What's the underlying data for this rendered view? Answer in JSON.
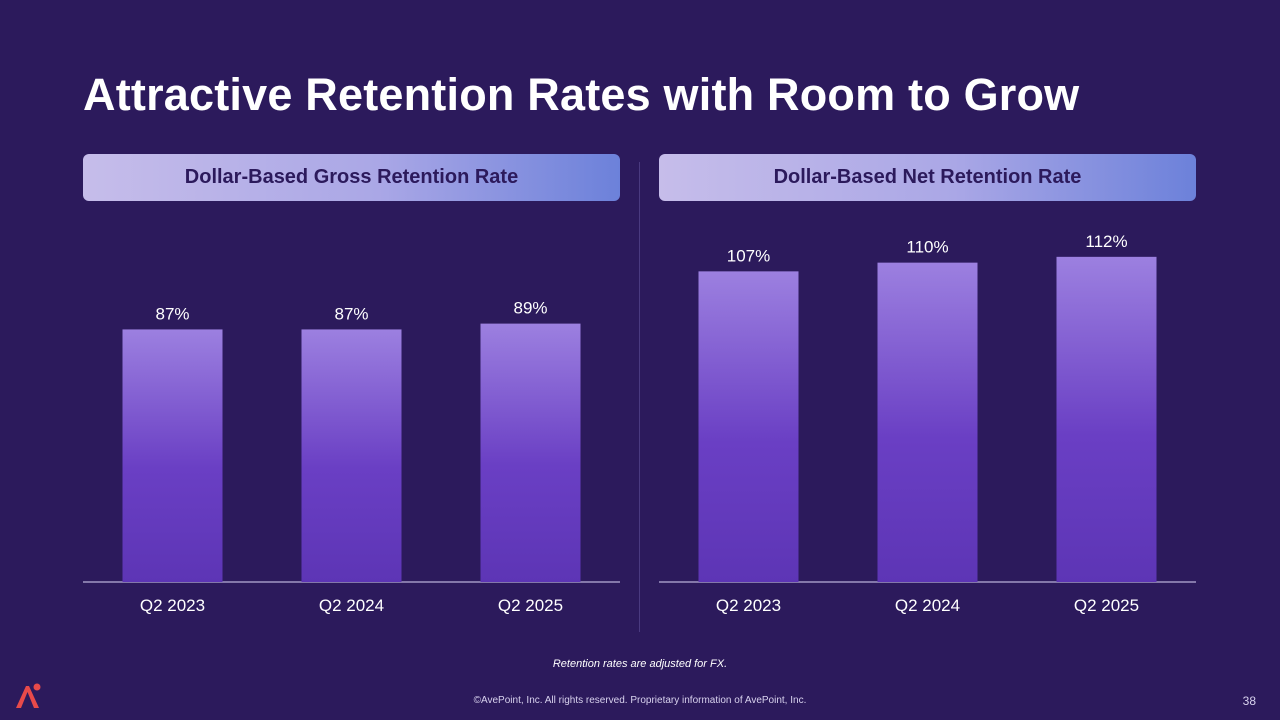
{
  "slide": {
    "title": "Attractive Retention Rates with Room to Grow",
    "footnote": "Retention rates are adjusted for FX.",
    "footer": "©AvePoint, Inc. All rights reserved. Proprietary information of AvePoint, Inc.",
    "page_number": "38"
  },
  "colors": {
    "background": "#2c1a5c",
    "bar_top": "#9c80e0",
    "bar_bottom": "#5d35b5",
    "header_gradient_start": "#c6bdea",
    "header_gradient_end": "#6c81da",
    "logo": "#e84a4a"
  },
  "logo_icon": "avepoint-logo-icon",
  "chart_data": [
    {
      "type": "bar",
      "title": "Dollar-Based Gross Retention Rate",
      "categories": [
        "Q2 2023",
        "Q2 2024",
        "Q2 2025"
      ],
      "values": [
        87,
        87,
        89
      ],
      "data_labels": [
        "87%",
        "87%",
        "89%"
      ],
      "ylim": [
        0,
        124
      ],
      "grid": false,
      "legend": "none"
    },
    {
      "type": "bar",
      "title": "Dollar-Based Net Retention Rate",
      "categories": [
        "Q2 2023",
        "Q2 2024",
        "Q2 2025"
      ],
      "values": [
        107,
        110,
        112
      ],
      "data_labels": [
        "107%",
        "110%",
        "112%"
      ],
      "ylim": [
        0,
        124
      ],
      "grid": false,
      "legend": "none"
    }
  ]
}
